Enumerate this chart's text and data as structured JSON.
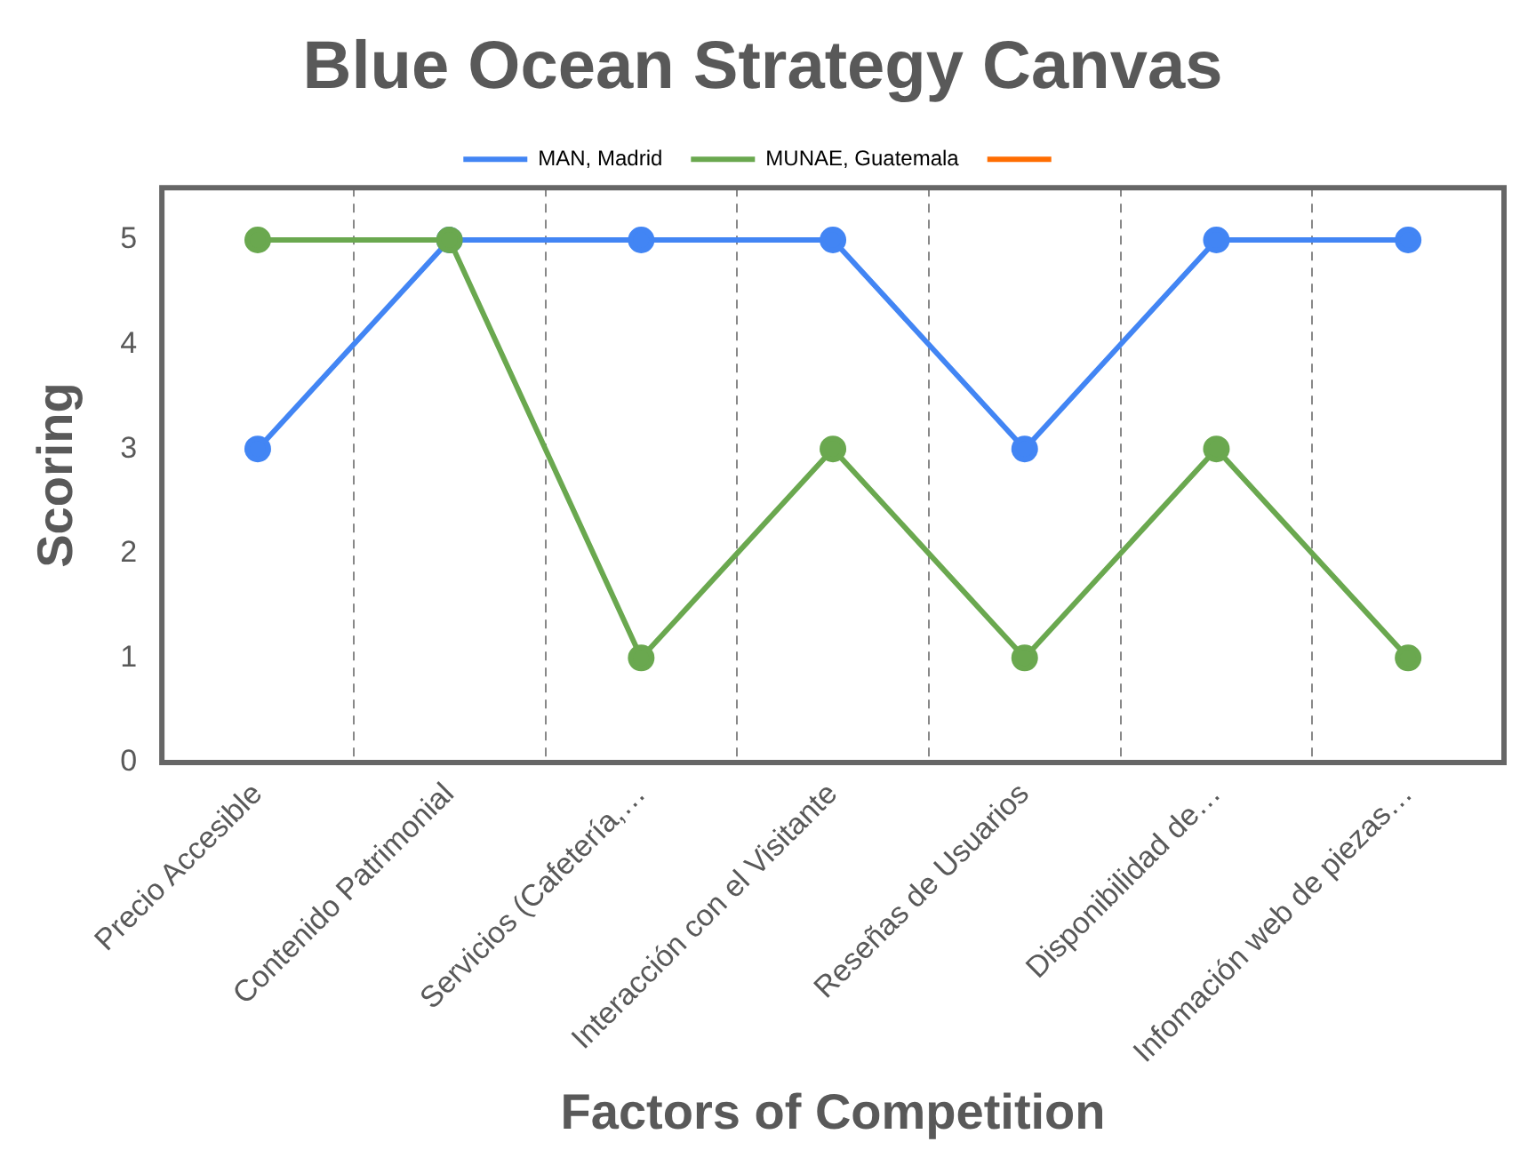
{
  "chart_data": {
    "type": "line",
    "title": "Blue Ocean Strategy Canvas",
    "xlabel": "Factors of Competition",
    "ylabel": "Scoring",
    "categories": [
      "Precio Accesible",
      "Contenido Patrimonial",
      "Servicios (Cafetería,…",
      "Interacción con el Visitante",
      "Reseñas de Usuarios",
      "Disponibilidad de…",
      "Infomación web de piezas…"
    ],
    "series": [
      {
        "name": "MAN, Madrid",
        "color": "#4285f4",
        "values": [
          3,
          5,
          5,
          5,
          3,
          5,
          5
        ]
      },
      {
        "name": "MUNAE, Guatemala",
        "color": "#6aa84f",
        "values": [
          5,
          5,
          1,
          3,
          1,
          3,
          1
        ]
      },
      {
        "color": "#ff6d01",
        "values": [
          null,
          null,
          null,
          null,
          null,
          null,
          null
        ]
      }
    ],
    "ylim": [
      0,
      5.5
    ],
    "yticks": [
      0,
      1,
      2,
      3,
      4,
      5
    ],
    "grid": "x",
    "legend": "top",
    "marker": "circle",
    "line_style": "solid"
  }
}
